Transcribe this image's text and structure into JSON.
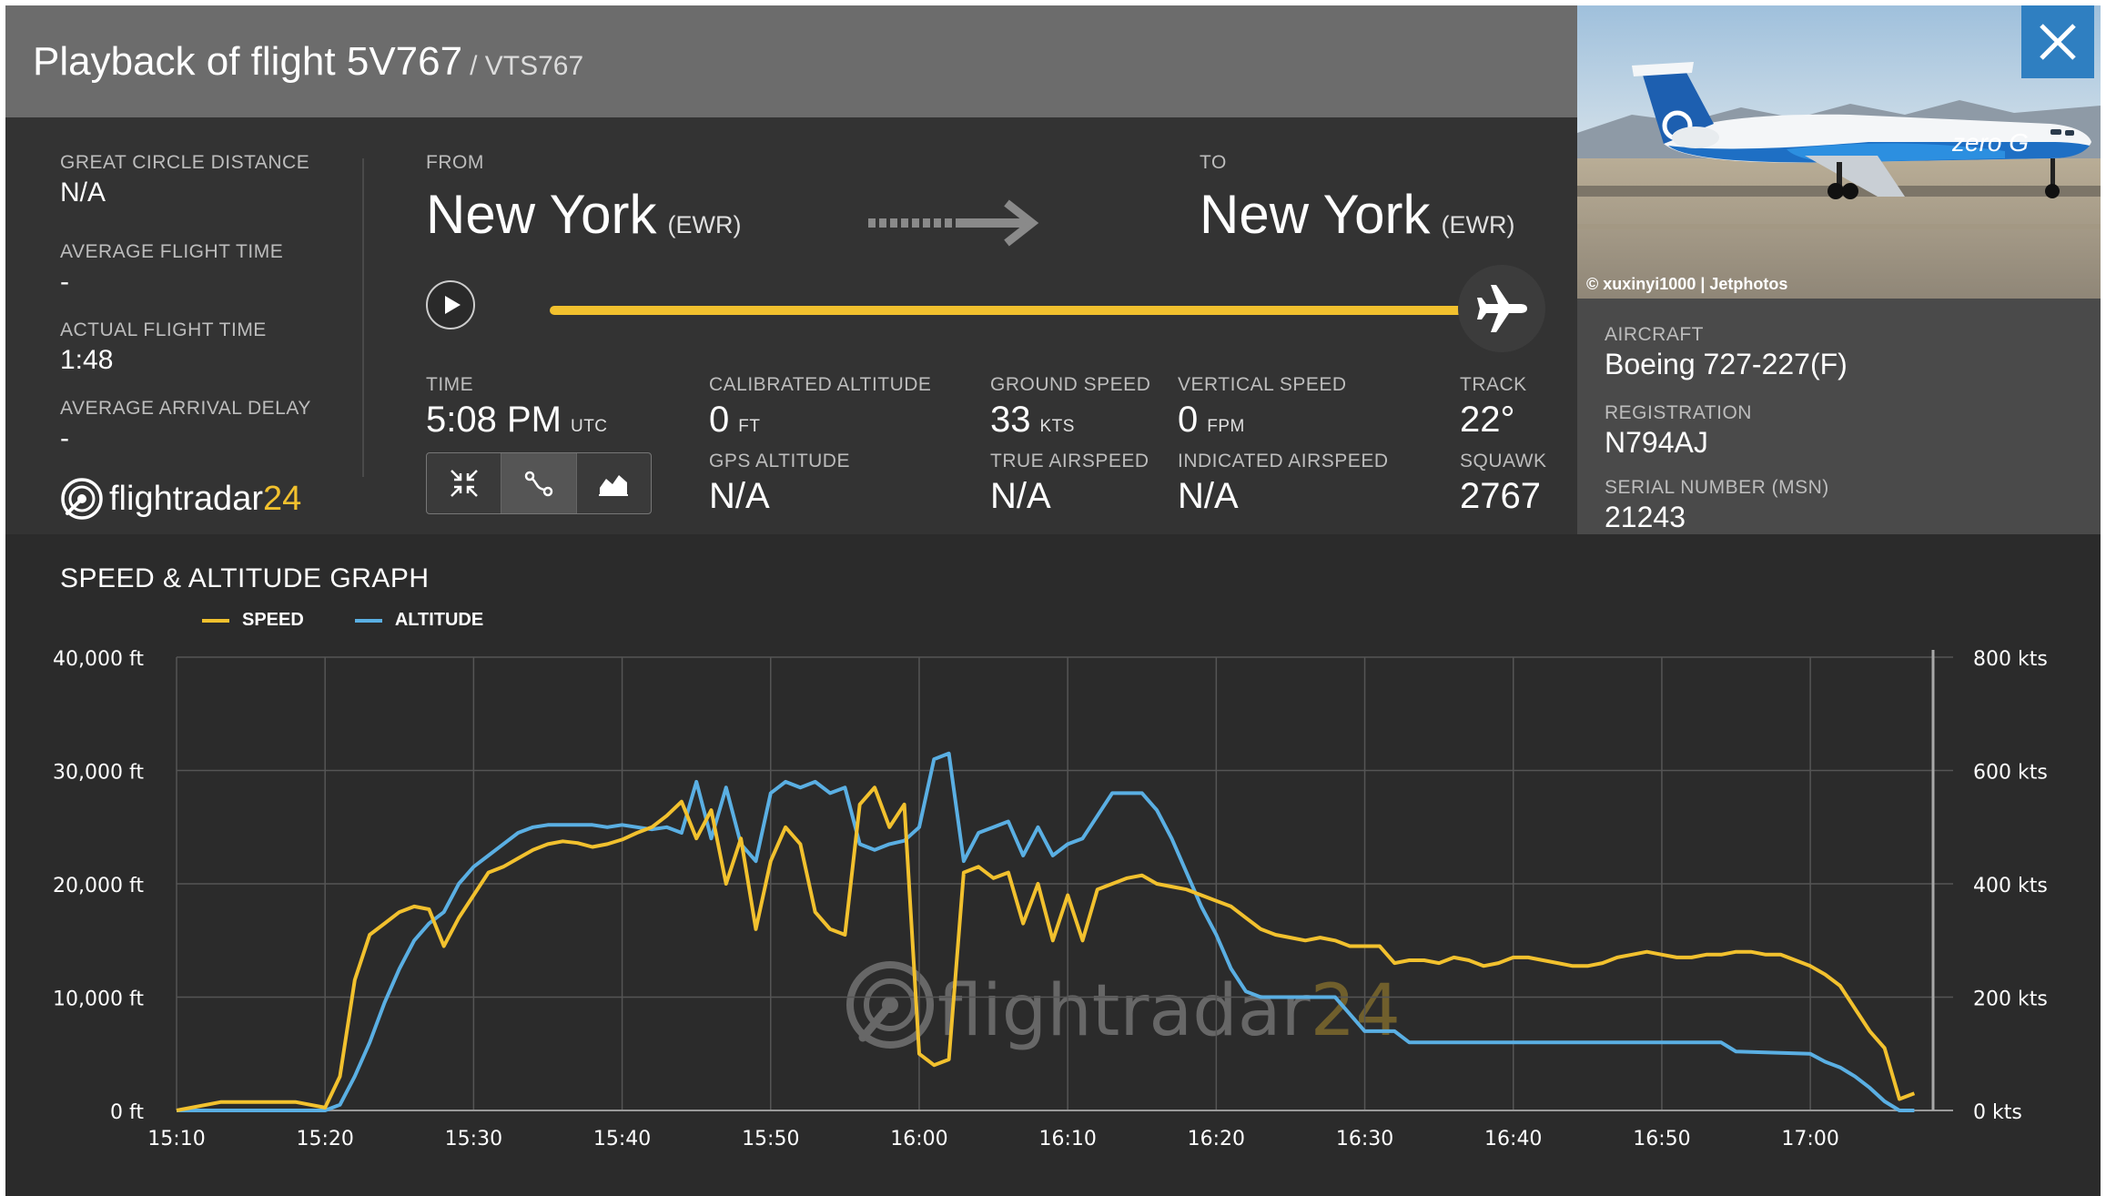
{
  "header": {
    "title": "Playback of flight 5V767",
    "callsign": "/ VTS767"
  },
  "stats": {
    "great_circle_distance": {
      "label": "GREAT CIRCLE DISTANCE",
      "value": "N/A"
    },
    "average_flight_time": {
      "label": "AVERAGE FLIGHT TIME",
      "value": "-"
    },
    "actual_flight_time": {
      "label": "ACTUAL FLIGHT TIME",
      "value": "1:48"
    },
    "average_arrival_delay": {
      "label": "AVERAGE ARRIVAL DELAY",
      "value": "-"
    }
  },
  "route": {
    "from_label": "FROM",
    "from_city": "New York",
    "from_code": "(EWR)",
    "to_label": "TO",
    "to_city": "New York",
    "to_code": "(EWR)"
  },
  "playback": {
    "progress": 1.0
  },
  "telemetry": {
    "time": {
      "label": "TIME",
      "value": "5:08 PM",
      "unit": "UTC"
    },
    "calibrated_altitude": {
      "label": "CALIBRATED ALTITUDE",
      "value": "0",
      "unit": "FT"
    },
    "gps_altitude": {
      "label": "GPS ALTITUDE",
      "value": "N/A"
    },
    "ground_speed": {
      "label": "GROUND SPEED",
      "value": "33",
      "unit": "KTS"
    },
    "true_airspeed": {
      "label": "TRUE AIRSPEED",
      "value": "N/A"
    },
    "vertical_speed": {
      "label": "VERTICAL SPEED",
      "value": "0",
      "unit": "FPM"
    },
    "indicated_airspeed": {
      "label": "INDICATED AIRSPEED",
      "value": "N/A"
    },
    "track": {
      "label": "TRACK",
      "value": "22°"
    },
    "squawk": {
      "label": "SQUAWK",
      "value": "2767"
    }
  },
  "brand": {
    "name": "flightradar",
    "suffix": "24"
  },
  "aircraft": {
    "photo_credit": "© xuxinyi1000 | Jetphotos",
    "livery_text": "zero G",
    "aircraft": {
      "label": "AIRCRAFT",
      "value": "Boeing 727-227(F)"
    },
    "registration": {
      "label": "REGISTRATION",
      "value": "N794AJ"
    },
    "serial_number": {
      "label": "SERIAL NUMBER (MSN)",
      "value": "21243"
    }
  },
  "colors": {
    "speed": "#f2c12e",
    "altitude": "#5aafe3",
    "accent_close": "#2f7fc1"
  },
  "graph": {
    "title": "SPEED & ALTITUDE GRAPH"
  },
  "chart_data": {
    "type": "line",
    "title": "SPEED & ALTITUDE GRAPH",
    "x_ticks": [
      "15:10",
      "15:20",
      "15:30",
      "15:40",
      "15:50",
      "16:00",
      "16:10",
      "16:20",
      "16:30",
      "16:40",
      "16:50",
      "17:00"
    ],
    "xlim_minutes": [
      0,
      119
    ],
    "y_left": {
      "ticks": [
        "0 ft",
        "10,000 ft",
        "20,000 ft",
        "30,000 ft",
        "40,000 ft"
      ],
      "ylim": [
        0,
        40000
      ]
    },
    "y_right": {
      "ticks": [
        "0 kts",
        "200 kts",
        "400 kts",
        "600 kts",
        "800 kts"
      ],
      "ylim": [
        0,
        800
      ]
    },
    "grid": true,
    "legend_position": "top-left",
    "series": [
      {
        "name": "SPEED",
        "axis": "right",
        "points": [
          [
            0,
            0
          ],
          [
            3,
            15
          ],
          [
            8,
            15
          ],
          [
            10,
            5
          ],
          [
            11,
            60
          ],
          [
            12,
            230
          ],
          [
            13,
            310
          ],
          [
            14,
            330
          ],
          [
            15,
            350
          ],
          [
            16,
            360
          ],
          [
            17,
            355
          ],
          [
            18,
            290
          ],
          [
            19,
            340
          ],
          [
            20,
            380
          ],
          [
            21,
            420
          ],
          [
            22,
            430
          ],
          [
            23,
            445
          ],
          [
            24,
            460
          ],
          [
            25,
            470
          ],
          [
            26,
            475
          ],
          [
            27,
            472
          ],
          [
            28,
            465
          ],
          [
            29,
            470
          ],
          [
            30,
            478
          ],
          [
            31,
            490
          ],
          [
            32,
            500
          ],
          [
            33,
            520
          ],
          [
            34,
            545
          ],
          [
            35,
            480
          ],
          [
            36,
            530
          ],
          [
            37,
            400
          ],
          [
            38,
            480
          ],
          [
            39,
            320
          ],
          [
            40,
            440
          ],
          [
            41,
            500
          ],
          [
            42,
            470
          ],
          [
            43,
            350
          ],
          [
            44,
            320
          ],
          [
            45,
            310
          ],
          [
            46,
            540
          ],
          [
            47,
            570
          ],
          [
            48,
            500
          ],
          [
            49,
            540
          ],
          [
            50,
            100
          ],
          [
            51,
            80
          ],
          [
            52,
            90
          ],
          [
            53,
            420
          ],
          [
            54,
            430
          ],
          [
            55,
            410
          ],
          [
            56,
            420
          ],
          [
            57,
            330
          ],
          [
            58,
            400
          ],
          [
            59,
            300
          ],
          [
            60,
            380
          ],
          [
            61,
            300
          ],
          [
            62,
            390
          ],
          [
            63,
            400
          ],
          [
            64,
            410
          ],
          [
            65,
            415
          ],
          [
            66,
            400
          ],
          [
            67,
            395
          ],
          [
            68,
            390
          ],
          [
            69,
            380
          ],
          [
            70,
            370
          ],
          [
            71,
            360
          ],
          [
            72,
            340
          ],
          [
            73,
            320
          ],
          [
            74,
            310
          ],
          [
            75,
            305
          ],
          [
            76,
            300
          ],
          [
            77,
            305
          ],
          [
            78,
            300
          ],
          [
            79,
            290
          ],
          [
            80,
            290
          ],
          [
            81,
            290
          ],
          [
            82,
            260
          ],
          [
            83,
            265
          ],
          [
            84,
            265
          ],
          [
            85,
            260
          ],
          [
            86,
            270
          ],
          [
            87,
            265
          ],
          [
            88,
            255
          ],
          [
            89,
            260
          ],
          [
            90,
            270
          ],
          [
            91,
            270
          ],
          [
            92,
            265
          ],
          [
            93,
            260
          ],
          [
            94,
            255
          ],
          [
            95,
            255
          ],
          [
            96,
            260
          ],
          [
            97,
            270
          ],
          [
            98,
            275
          ],
          [
            99,
            280
          ],
          [
            100,
            275
          ],
          [
            101,
            270
          ],
          [
            102,
            270
          ],
          [
            103,
            275
          ],
          [
            104,
            275
          ],
          [
            105,
            280
          ],
          [
            106,
            280
          ],
          [
            107,
            275
          ],
          [
            108,
            275
          ],
          [
            109,
            265
          ],
          [
            110,
            255
          ],
          [
            111,
            240
          ],
          [
            112,
            220
          ],
          [
            113,
            180
          ],
          [
            114,
            140
          ],
          [
            115,
            110
          ],
          [
            116,
            20
          ],
          [
            117,
            30
          ]
        ]
      },
      {
        "name": "ALTITUDE",
        "axis": "left",
        "points": [
          [
            0,
            0
          ],
          [
            10,
            0
          ],
          [
            11,
            500
          ],
          [
            12,
            3000
          ],
          [
            13,
            6000
          ],
          [
            14,
            9500
          ],
          [
            15,
            12500
          ],
          [
            16,
            15000
          ],
          [
            17,
            16500
          ],
          [
            18,
            17500
          ],
          [
            19,
            20000
          ],
          [
            20,
            21500
          ],
          [
            21,
            22500
          ],
          [
            22,
            23500
          ],
          [
            23,
            24500
          ],
          [
            24,
            25000
          ],
          [
            25,
            25200
          ],
          [
            28,
            25200
          ],
          [
            29,
            25000
          ],
          [
            30,
            25200
          ],
          [
            31,
            25000
          ],
          [
            32,
            24800
          ],
          [
            33,
            25000
          ],
          [
            34,
            24500
          ],
          [
            35,
            29000
          ],
          [
            36,
            24000
          ],
          [
            37,
            28500
          ],
          [
            38,
            23500
          ],
          [
            39,
            22000
          ],
          [
            40,
            28000
          ],
          [
            41,
            29000
          ],
          [
            42,
            28500
          ],
          [
            43,
            29000
          ],
          [
            44,
            28000
          ],
          [
            45,
            28500
          ],
          [
            46,
            23500
          ],
          [
            47,
            23000
          ],
          [
            48,
            23500
          ],
          [
            49,
            23800
          ],
          [
            50,
            25000
          ],
          [
            51,
            31000
          ],
          [
            52,
            31500
          ],
          [
            53,
            22000
          ],
          [
            54,
            24500
          ],
          [
            55,
            25000
          ],
          [
            56,
            25500
          ],
          [
            57,
            22500
          ],
          [
            58,
            25000
          ],
          [
            59,
            22500
          ],
          [
            60,
            23500
          ],
          [
            61,
            24000
          ],
          [
            62,
            26000
          ],
          [
            63,
            28000
          ],
          [
            64,
            28000
          ],
          [
            65,
            28000
          ],
          [
            66,
            26500
          ],
          [
            67,
            24000
          ],
          [
            68,
            21000
          ],
          [
            69,
            18000
          ],
          [
            70,
            15500
          ],
          [
            71,
            12500
          ],
          [
            72,
            10500
          ],
          [
            73,
            10000
          ],
          [
            74,
            10000
          ],
          [
            75,
            10000
          ],
          [
            76,
            10000
          ],
          [
            77,
            10000
          ],
          [
            78,
            10000
          ],
          [
            79,
            8500
          ],
          [
            80,
            7000
          ],
          [
            82,
            7000
          ],
          [
            83,
            6000
          ],
          [
            92,
            6000
          ],
          [
            104,
            6000
          ],
          [
            105,
            5200
          ],
          [
            110,
            5000
          ],
          [
            111,
            4300
          ],
          [
            112,
            3800
          ],
          [
            113,
            3000
          ],
          [
            114,
            2000
          ],
          [
            115,
            800
          ],
          [
            116,
            0
          ],
          [
            117,
            0
          ]
        ]
      }
    ]
  }
}
